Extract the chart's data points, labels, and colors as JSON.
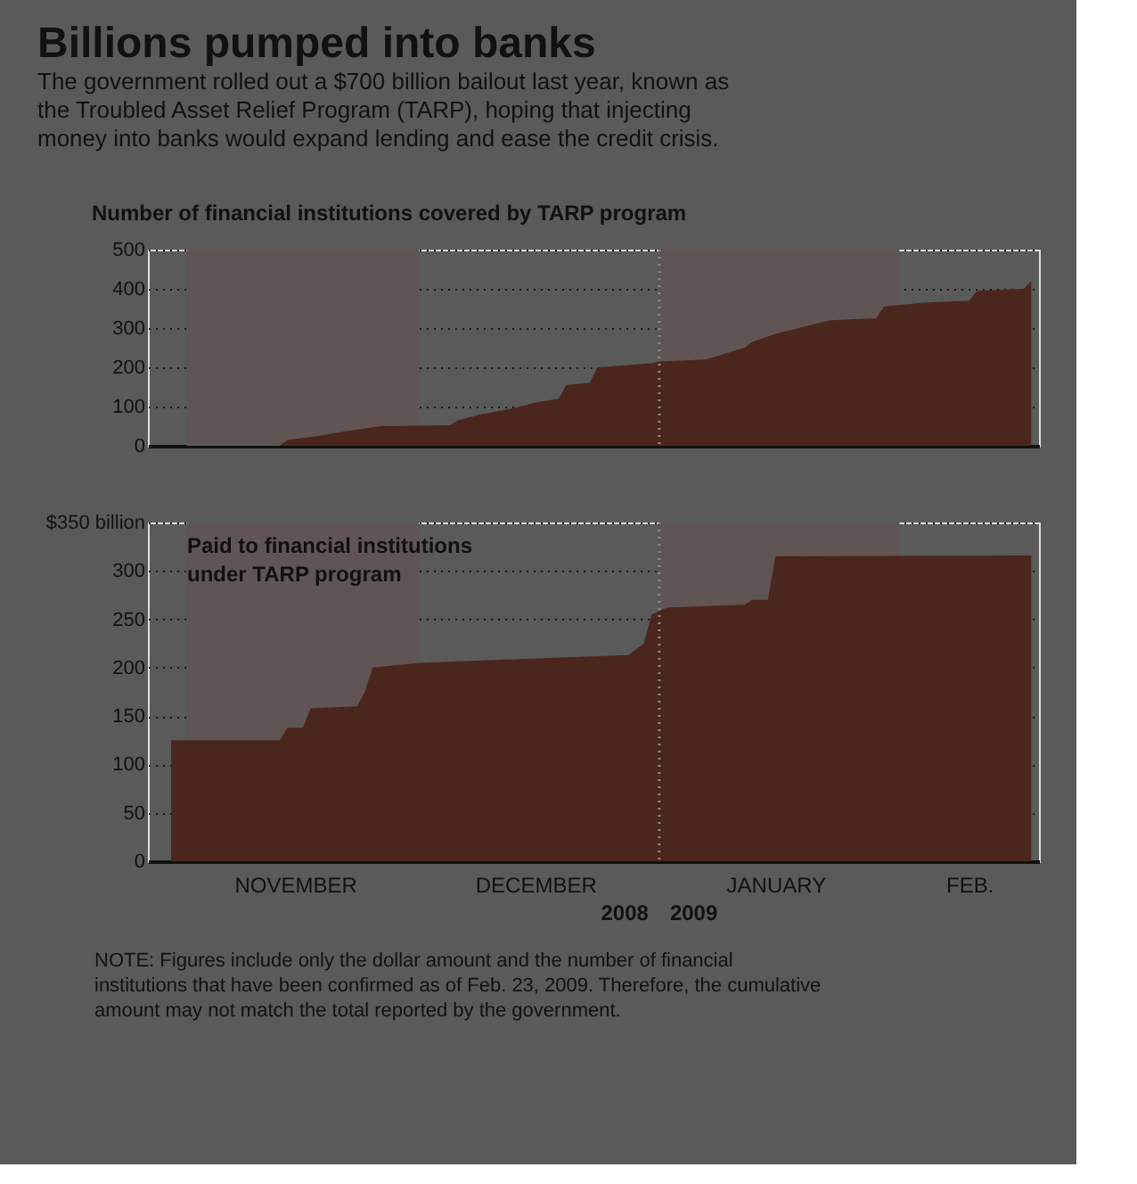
{
  "chart_data": [
    {
      "type": "area",
      "title": "Billions pumped into banks",
      "subtitle": "The government rolled out a $700 billion bailout last year, known as the Troubled Asset Relief Program (TARP), hoping that injecting money into banks would expand lending and ease the credit crisis.",
      "ylabel": "Number of financial institutions covered by TARP program",
      "x": [
        "2008-10-28",
        "2008-11-13",
        "2008-11-14",
        "2008-11-18",
        "2008-11-21",
        "2008-11-26",
        "2008-12-05",
        "2008-12-06",
        "2008-12-09",
        "2008-12-13",
        "2008-12-16",
        "2008-12-19",
        "2008-12-20",
        "2008-12-23",
        "2008-12-24",
        "2008-12-31",
        "2009-01-01",
        "2009-01-07",
        "2009-01-12",
        "2009-01-13",
        "2009-01-16",
        "2009-01-23",
        "2009-01-29",
        "2009-01-30",
        "2009-02-04",
        "2009-02-10",
        "2009-02-11",
        "2009-02-17",
        "2009-02-18"
      ],
      "series": [
        {
          "color": "#4b261d",
          "values": [
            0,
            0,
            15,
            25,
            35,
            50,
            52,
            65,
            80,
            95,
            110,
            120,
            155,
            160,
            200,
            210,
            215,
            220,
            250,
            265,
            285,
            320,
            325,
            355,
            365,
            370,
            395,
            400,
            420
          ]
        }
      ],
      "xlim": [
        "2008-10-27",
        "2009-02-19"
      ],
      "ylim": [
        0,
        500
      ],
      "yticks": [
        0,
        100,
        200,
        300,
        400,
        500
      ],
      "grid": "y",
      "tick_labels": "y",
      "bands": [
        {
          "axis": "x",
          "from": "2008-11-01",
          "to": "2008-12-01",
          "color": "#615454"
        },
        {
          "axis": "x",
          "from": "2009-01-01",
          "to": "2009-02-01",
          "color": "#615454"
        }
      ],
      "ref_lines": [
        {
          "axis": "x",
          "value": "2009-01-01",
          "color": "#8a8a8a",
          "line_style": "dotted"
        }
      ]
    },
    {
      "type": "area",
      "x": [
        "2008-10-30",
        "2008-11-13",
        "2008-11-14",
        "2008-11-16",
        "2008-11-17",
        "2008-11-23",
        "2008-11-24",
        "2008-11-25",
        "2008-12-01",
        "2008-12-28",
        "2008-12-30",
        "2008-12-31",
        "2009-01-02",
        "2009-01-12",
        "2009-01-13",
        "2009-01-15",
        "2009-01-16",
        "2009-02-18"
      ],
      "series": [
        {
          "color": "#4b261d",
          "values": [
            125,
            125,
            138,
            138,
            158,
            160,
            175,
            200,
            205,
            213,
            225,
            255,
            262,
            265,
            270,
            270,
            315,
            316
          ]
        }
      ],
      "xlim": [
        "2008-10-27",
        "2009-02-19"
      ],
      "ylim": [
        0,
        350
      ],
      "yticks": [
        0,
        50,
        100,
        150,
        200,
        250,
        300,
        {
          "value": 350,
          "label": "$350 billion"
        }
      ],
      "xticks": [
        {
          "value": "2008-11-15",
          "label": "NOVEMBER"
        },
        {
          "value": "2008-12-16",
          "label": "DECEMBER"
        },
        {
          "value": "2009-01-16",
          "label": "JANUARY"
        },
        {
          "value": "2009-02-10",
          "label": "FEB."
        }
      ],
      "grid": "y",
      "bands": [
        {
          "axis": "x",
          "from": "2008-11-01",
          "to": "2008-12-01",
          "color": "#615454"
        },
        {
          "axis": "x",
          "from": "2009-01-01",
          "to": "2009-02-01",
          "color": "#615454"
        }
      ],
      "ref_lines": [
        {
          "axis": "x",
          "value": "2009-01-01",
          "color": "#8a8a8a",
          "line_style": "dotted"
        }
      ],
      "annotations": [
        "Paid to financial institutions under TARP program",
        "2008",
        "2009",
        "NOTE: Figures include only the dollar amount and the number of financial institutions that have been confirmed as of Feb. 23, 2009. Therefore, the cumulative amount may not match the total reported by the government."
      ]
    }
  ]
}
